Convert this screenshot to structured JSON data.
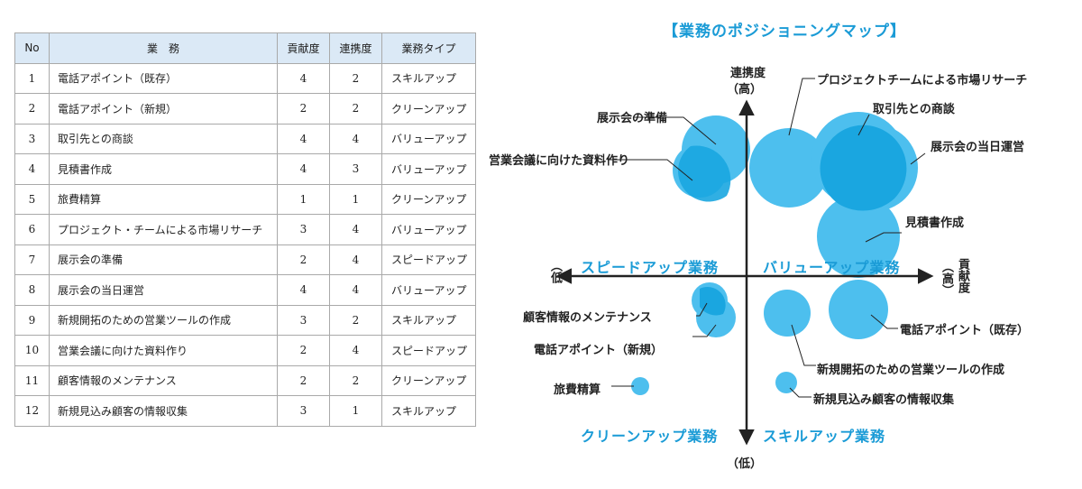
{
  "table": {
    "headers": [
      "No",
      "業　務",
      "貢献度",
      "連携度",
      "業務タイプ"
    ],
    "rows": [
      [
        "1",
        "電話アポイント（既存）",
        "4",
        "2",
        "スキルアップ"
      ],
      [
        "2",
        "電話アポイント（新規）",
        "2",
        "2",
        "クリーンアップ"
      ],
      [
        "3",
        "取引先との商談",
        "4",
        "4",
        "バリューアップ"
      ],
      [
        "4",
        "見積書作成",
        "4",
        "3",
        "バリューアップ"
      ],
      [
        "5",
        "旅費精算",
        "1",
        "1",
        "クリーンアップ"
      ],
      [
        "6",
        "プロジェクト・チームによる市場リサーチ",
        "3",
        "4",
        "バリューアップ"
      ],
      [
        "7",
        "展示会の準備",
        "2",
        "4",
        "スピードアップ"
      ],
      [
        "8",
        "展示会の当日運営",
        "4",
        "4",
        "バリューアップ"
      ],
      [
        "9",
        "新規開拓のための営業ツールの作成",
        "3",
        "2",
        "スキルアップ"
      ],
      [
        "10",
        "営業会議に向けた資料作り",
        "2",
        "4",
        "スピードアップ"
      ],
      [
        "11",
        "顧客情報のメンテナンス",
        "2",
        "2",
        "クリーンアップ"
      ],
      [
        "12",
        "新規見込み顧客の情報収集",
        "3",
        "1",
        "スキルアップ"
      ]
    ]
  },
  "map": {
    "title": "【業務のポジショニングマップ】",
    "axis": {
      "y_label": "連携度",
      "y_high": "（高）",
      "y_low": "（低）",
      "x_low": "（低",
      "x_high": "（高）",
      "x_label": "貢献度"
    },
    "quadrants": {
      "top_left": "スピードアップ業務",
      "top_right": "バリューアップ業務",
      "bottom_left": "クリーンアップ業務",
      "bottom_right": "スキルアップ業務"
    },
    "labels": {
      "research": "プロジェクトチームによる市場リサーチ",
      "negotiation": "取引先との商談",
      "prep": "展示会の準備",
      "event_day": "展示会の当日運営",
      "meeting_docs": "営業会議に向けた資料作り",
      "estimate": "見積書作成",
      "customer_info": "顧客情報のメンテナンス",
      "call_new": "電話アポイント（新規）",
      "call_existing": "電話アポイント（既存）",
      "sales_tool": "新規開拓のための営業ツールの作成",
      "travel": "旅費精算",
      "prospect": "新規見込み顧客の情報収集"
    },
    "colors": {
      "bubble": "#4dbfee",
      "bubble_overlap": "#1aa6e0",
      "accent_text": "#1a9bd6",
      "axis": "#222222"
    }
  }
}
